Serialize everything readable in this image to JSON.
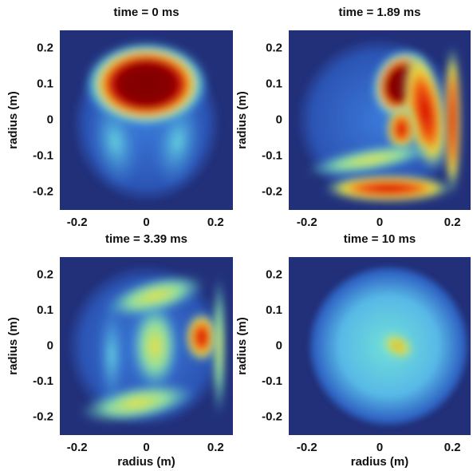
{
  "chart_data": [
    {
      "type": "heatmap",
      "title": "time = 0 ms",
      "ylabel": "radius (m)",
      "xlim": [
        -0.25,
        0.25
      ],
      "ylim": [
        -0.25,
        0.25
      ],
      "xticks": [
        -0.2,
        0,
        0.2
      ],
      "yticks": [
        0.2,
        0.1,
        0,
        -0.1,
        -0.2
      ]
    },
    {
      "type": "heatmap",
      "title": "time = 1.89 ms",
      "ylabel": "radius (m)",
      "xlim": [
        -0.25,
        0.25
      ],
      "ylim": [
        -0.25,
        0.25
      ],
      "xticks": [
        -0.2,
        0,
        0.2
      ],
      "yticks": [
        0.2,
        0.1,
        0,
        -0.1,
        -0.2
      ]
    },
    {
      "type": "heatmap",
      "title": "time = 3.39 ms",
      "xlabel": "radius (m)",
      "ylabel": "radius (m)",
      "xlim": [
        -0.25,
        0.25
      ],
      "ylim": [
        -0.25,
        0.25
      ],
      "xticks": [
        -0.2,
        0,
        0.2
      ],
      "yticks": [
        0.2,
        0.1,
        0,
        -0.1,
        -0.2
      ]
    },
    {
      "type": "heatmap",
      "title": "time = 10 ms",
      "xlabel": "radius (m)",
      "ylabel": "radius (m)",
      "xlim": [
        -0.25,
        0.25
      ],
      "ylim": [
        -0.25,
        0.25
      ],
      "xticks": [
        -0.2,
        0,
        0.2
      ],
      "yticks": [
        0.2,
        0.1,
        0,
        -0.1,
        -0.2
      ]
    }
  ]
}
